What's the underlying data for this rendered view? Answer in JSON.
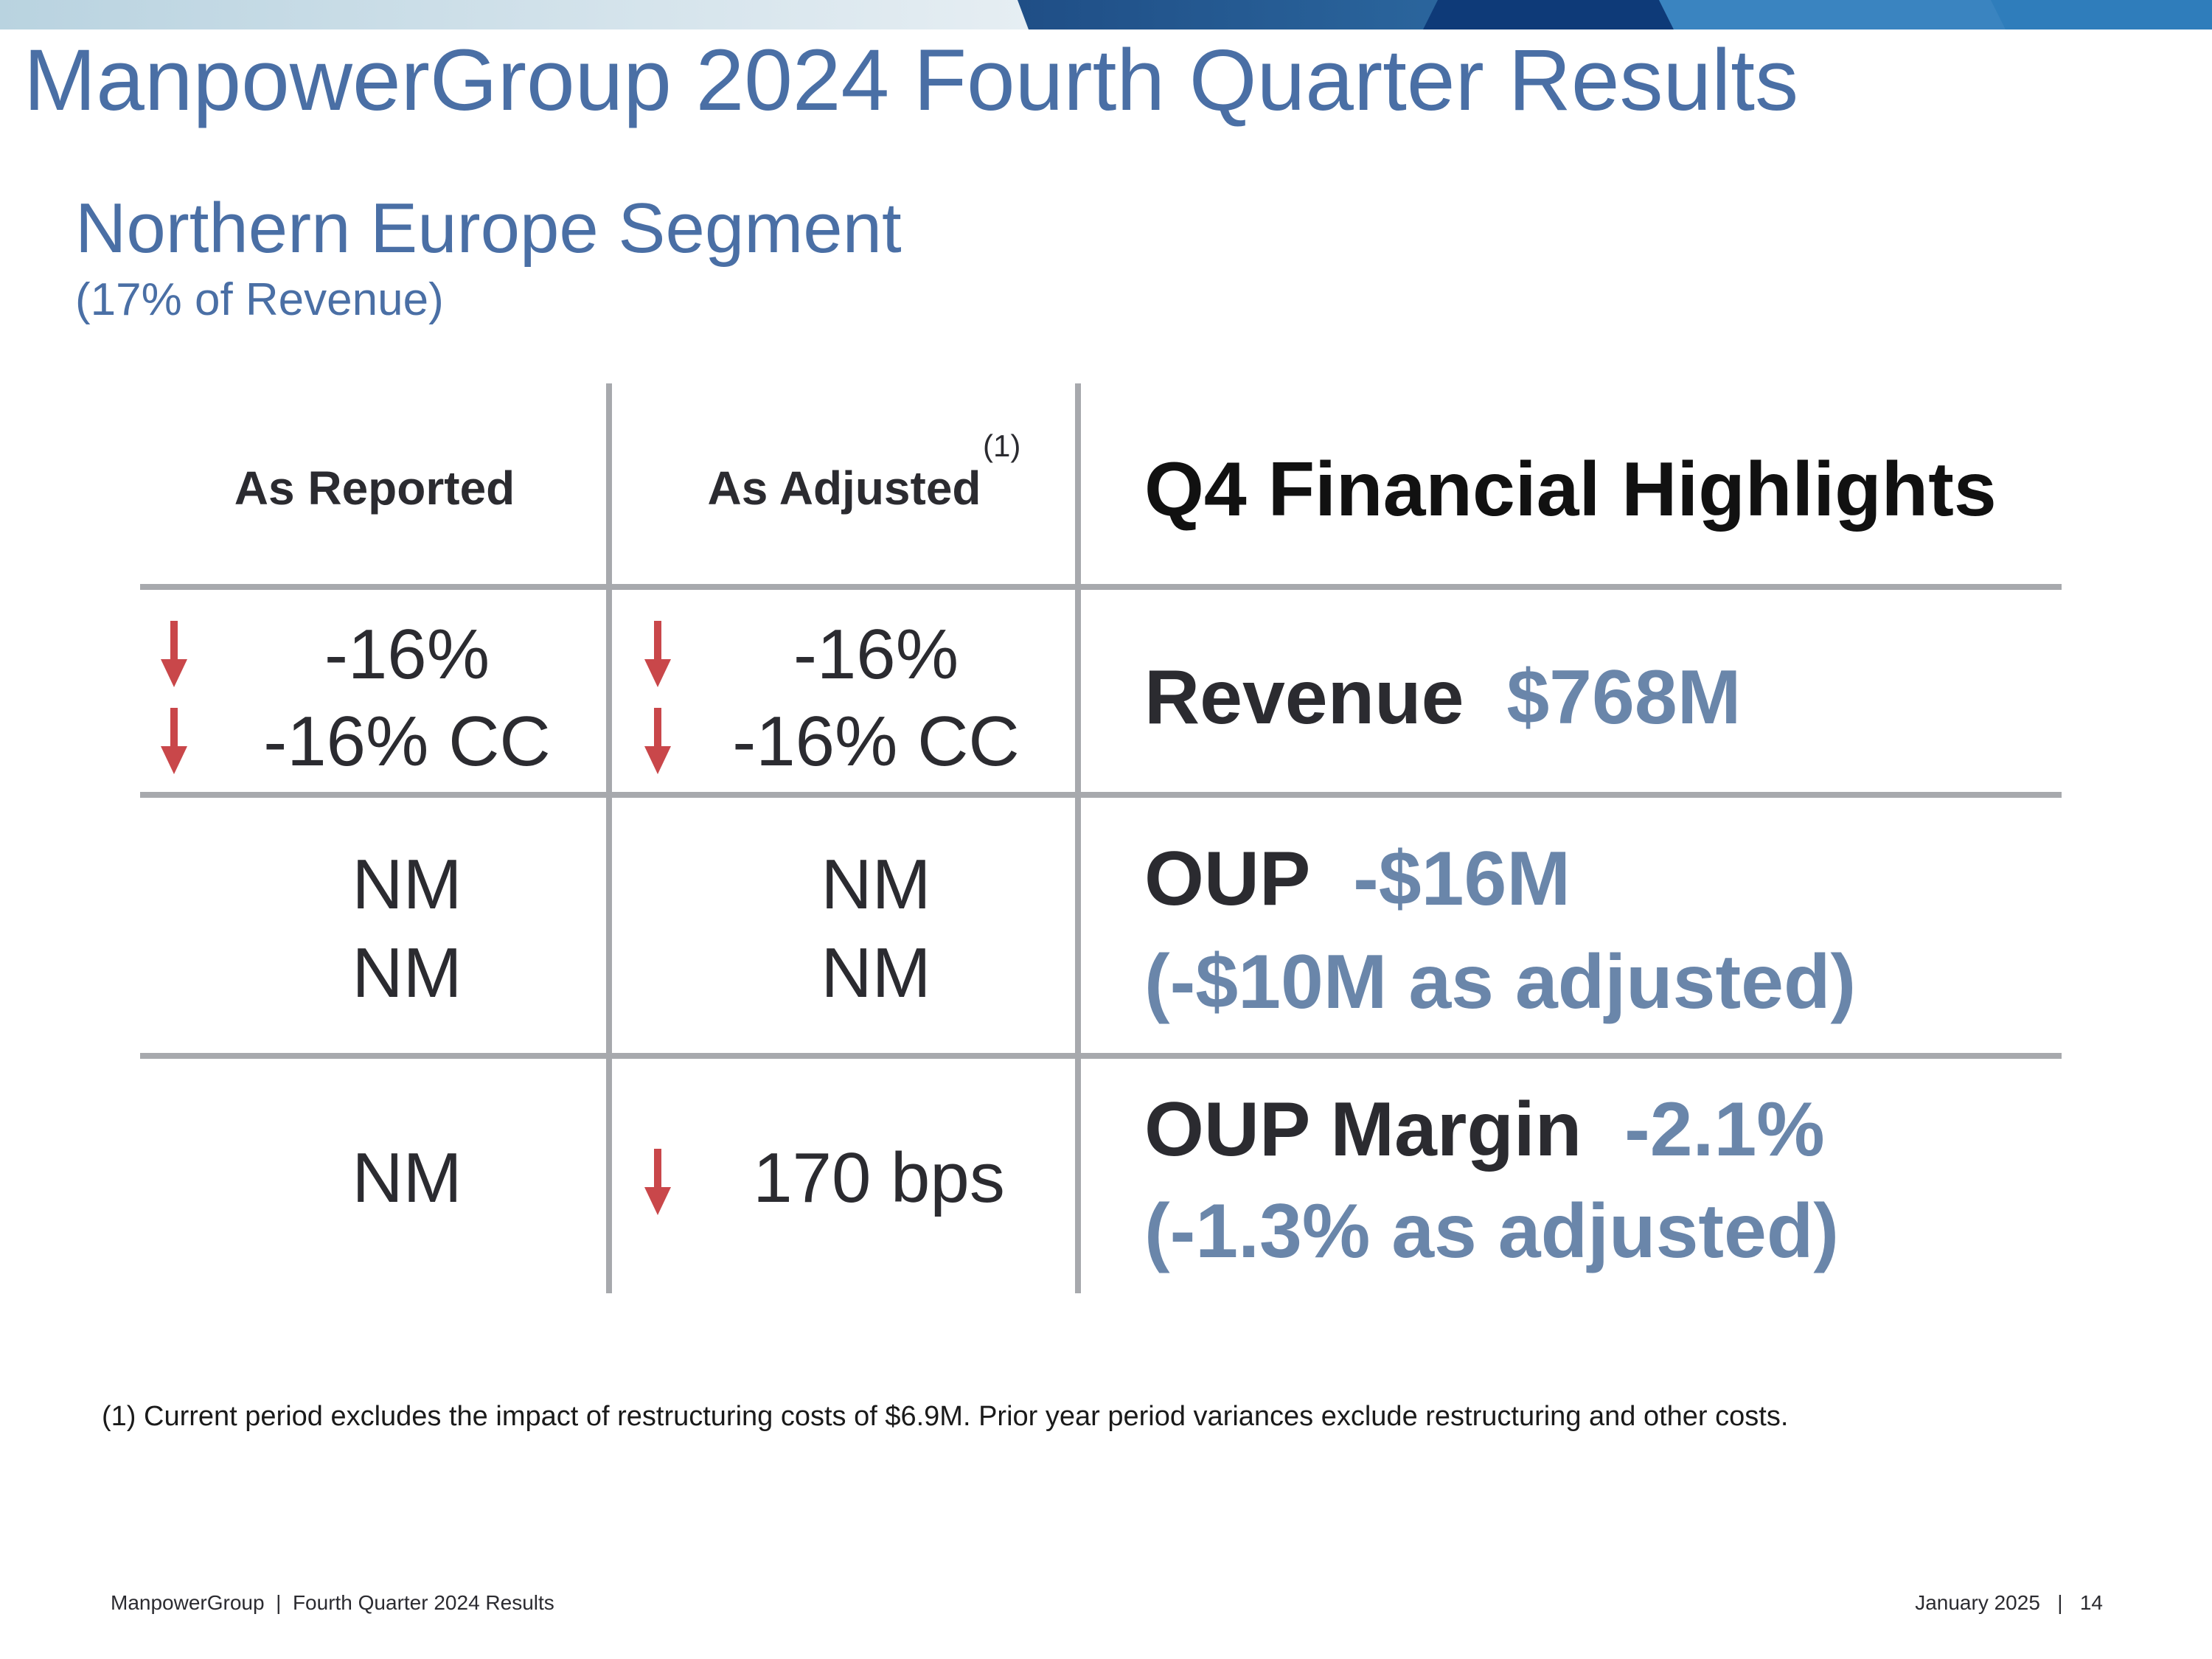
{
  "colors": {
    "title_blue": "#4a6fa5",
    "value_blue": "#6a86aa",
    "arrow_red": "#c9474a",
    "rule_gray": "#a7a9ad"
  },
  "slide": {
    "title": "ManpowerGroup 2024 Fourth Quarter Results",
    "subtitle": "Northern Europe Segment",
    "subnote": "(17% of Revenue)"
  },
  "table": {
    "col_reported": "As Reported",
    "col_adjusted": "As Adjusted",
    "col_adjusted_note": "(1)",
    "highlights_title": "Q4 Financial Highlights",
    "rows": [
      {
        "reported_1": "-16%",
        "reported_2": "-16% CC",
        "adjusted_1": "-16%",
        "adjusted_2": "-16% CC",
        "metric_label": "Revenue",
        "metric_value": "$768M"
      },
      {
        "reported_1": "NM",
        "reported_2": "NM",
        "adjusted_1": "NM",
        "adjusted_2": "NM",
        "metric_label": "OUP",
        "metric_value": "-$16M",
        "metric_adjusted": "(-$10M as adjusted)"
      },
      {
        "reported_1": "NM",
        "adjusted_1": "170 bps",
        "metric_label": "OUP Margin",
        "metric_value": "-2.1%",
        "metric_adjusted": "(-1.3% as adjusted)"
      }
    ]
  },
  "footnote": "(1)  Current period excludes the impact of restructuring costs of $6.9M. Prior year period variances exclude restructuring and other costs.",
  "footer": {
    "left": "ManpowerGroup  |  Fourth Quarter 2024 Results",
    "right": "January 2025   |   14"
  }
}
